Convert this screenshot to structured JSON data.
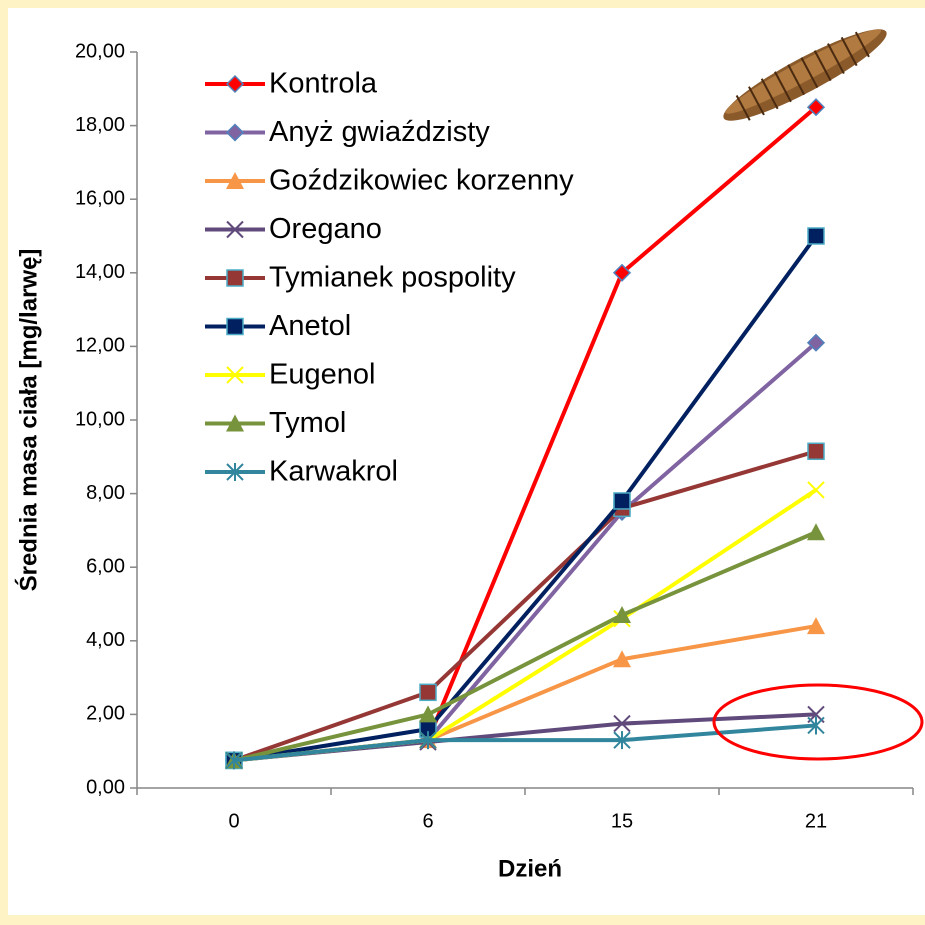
{
  "chart_data": {
    "type": "line",
    "x_label": "Dzień",
    "y_label": "Średnia masa ciała [mg/larwę]",
    "categories": [
      "0",
      "6",
      "15",
      "21"
    ],
    "ylim": [
      0,
      20
    ],
    "yticks": [
      {
        "value": 0,
        "label": "0,00"
      },
      {
        "value": 2,
        "label": "2,00"
      },
      {
        "value": 4,
        "label": "4,00"
      },
      {
        "value": 6,
        "label": "6,00"
      },
      {
        "value": 8,
        "label": "8,00"
      },
      {
        "value": 10,
        "label": "10,00"
      },
      {
        "value": 12,
        "label": "12,00"
      },
      {
        "value": 14,
        "label": "14,00"
      },
      {
        "value": 16,
        "label": "16,00"
      },
      {
        "value": 18,
        "label": "18,00"
      },
      {
        "value": 20,
        "label": "20,00"
      }
    ],
    "legend": "upper left",
    "series": [
      {
        "name": "Kontrola",
        "color": "#ff0000",
        "marker": "diamond",
        "values": [
          0.75,
          1.3,
          14.0,
          18.5
        ]
      },
      {
        "name": "Anyż gwiaździsty",
        "color": "#8064a2",
        "marker": "diamond",
        "values": [
          0.75,
          1.3,
          7.5,
          12.1
        ]
      },
      {
        "name": "Goździkowiec korzenny",
        "color": "#f79646",
        "marker": "triangle",
        "values": [
          0.75,
          1.3,
          3.5,
          4.4
        ]
      },
      {
        "name": "Oregano",
        "color": "#604a7b",
        "marker": "x",
        "values": [
          0.75,
          1.25,
          1.75,
          2.0
        ]
      },
      {
        "name": "Tymianek pospolity",
        "color": "#953735",
        "marker": "square",
        "values": [
          0.75,
          2.6,
          7.6,
          9.15
        ]
      },
      {
        "name": "Anetol",
        "color": "#002060",
        "marker": "square",
        "values": [
          0.75,
          1.6,
          7.8,
          15.0
        ]
      },
      {
        "name": "Eugenol",
        "color": "#ffff00",
        "marker": "x",
        "values": [
          0.75,
          1.3,
          4.6,
          8.1
        ]
      },
      {
        "name": "Tymol",
        "color": "#77933c",
        "marker": "triangle",
        "values": [
          0.75,
          2.0,
          4.7,
          6.95
        ]
      },
      {
        "name": "Karwakrol",
        "color": "#31859c",
        "marker": "star",
        "values": [
          0.75,
          1.3,
          1.3,
          1.7
        ]
      }
    ]
  }
}
